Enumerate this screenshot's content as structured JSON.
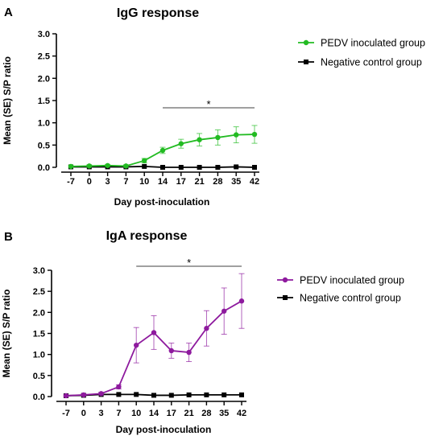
{
  "chart_data": [
    {
      "type": "line",
      "panel": "A",
      "title": "IgG response",
      "xlabel": "Day post-inoculation",
      "ylabel": "Mean (SE) S/P ratio",
      "categories": [
        "-7",
        "0",
        "3",
        "7",
        "10",
        "14",
        "17",
        "21",
        "28",
        "35",
        "42"
      ],
      "ylim": [
        0,
        3.0
      ],
      "yticks": [
        "0.0",
        "0.5",
        "1.0",
        "1.5",
        "2.0",
        "2.5",
        "3.0"
      ],
      "series": [
        {
          "name": "PEDV inoculated group",
          "color": "#22bb22",
          "marker": "circle",
          "values": [
            0.02,
            0.03,
            0.04,
            0.03,
            0.15,
            0.38,
            0.53,
            0.62,
            0.67,
            0.73,
            0.74
          ],
          "errors": [
            0.02,
            0.02,
            0.02,
            0.02,
            0.05,
            0.07,
            0.1,
            0.14,
            0.17,
            0.18,
            0.2
          ]
        },
        {
          "name": "Negative control group",
          "color": "#000000",
          "marker": "square",
          "values": [
            0.01,
            0.01,
            0.01,
            0.01,
            0.02,
            0.0,
            0.0,
            0.0,
            0.0,
            0.01,
            0.0
          ],
          "errors": [
            0,
            0,
            0,
            0,
            0,
            0,
            0,
            0,
            0,
            0,
            0
          ]
        }
      ],
      "significance": {
        "label": "*",
        "from": "14",
        "to": "42"
      },
      "legend": "right"
    },
    {
      "type": "line",
      "panel": "B",
      "title": "IgA response",
      "xlabel": "Day post-inoculation",
      "ylabel": "Mean (SE) S/P ratio",
      "categories": [
        "-7",
        "0",
        "3",
        "7",
        "10",
        "14",
        "17",
        "21",
        "28",
        "35",
        "42"
      ],
      "ylim": [
        0,
        3.0
      ],
      "yticks": [
        "0.0",
        "0.5",
        "1.0",
        "1.5",
        "2.0",
        "2.5",
        "3.0"
      ],
      "series": [
        {
          "name": "PEDV inoculated group",
          "color": "#8e1a9e",
          "marker": "circle",
          "values": [
            0.02,
            0.04,
            0.07,
            0.23,
            1.22,
            1.52,
            1.09,
            1.05,
            1.62,
            2.03,
            2.27
          ],
          "errors": [
            0.02,
            0.02,
            0.03,
            0.05,
            0.42,
            0.4,
            0.18,
            0.22,
            0.42,
            0.55,
            0.65
          ]
        },
        {
          "name": "Negative control group",
          "color": "#000000",
          "marker": "square",
          "values": [
            0.02,
            0.03,
            0.05,
            0.05,
            0.05,
            0.03,
            0.03,
            0.04,
            0.04,
            0.04,
            0.04
          ],
          "errors": [
            0,
            0,
            0,
            0,
            0,
            0,
            0,
            0,
            0,
            0,
            0
          ]
        }
      ],
      "significance": {
        "label": "*",
        "from": "10",
        "to": "42"
      },
      "legend": "right"
    }
  ]
}
